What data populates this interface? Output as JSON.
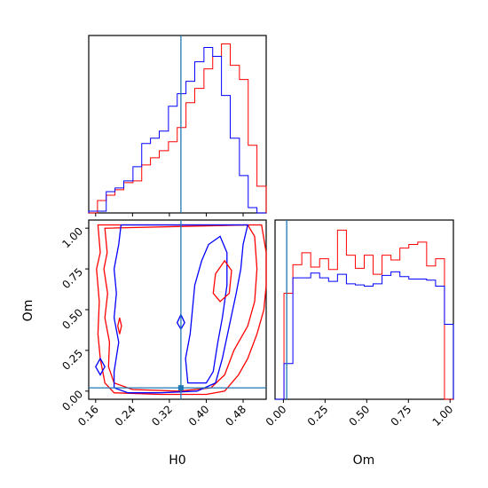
{
  "chart_data": [
    {
      "type": "histogram",
      "panel": "H0 marginal",
      "xlim": [
        0.145,
        0.53
      ],
      "truth": 0.345,
      "bin_edges": [
        0.145,
        0.164,
        0.183,
        0.202,
        0.221,
        0.241,
        0.26,
        0.279,
        0.298,
        0.318,
        0.337,
        0.356,
        0.375,
        0.395,
        0.414,
        0.433,
        0.452,
        0.472,
        0.491,
        0.51,
        0.53
      ],
      "series": [
        {
          "color": "#ff0000",
          "values": [
            0,
            7,
            10,
            13,
            17,
            18,
            27,
            31,
            35,
            40,
            48,
            62,
            70,
            81,
            88,
            95,
            83,
            75,
            38,
            15
          ]
        },
        {
          "color": "#0000ff",
          "values": [
            1,
            1,
            12,
            14,
            18,
            26,
            39,
            42,
            46,
            60,
            67,
            74,
            85,
            93,
            88,
            66,
            42,
            21,
            3,
            0
          ]
        }
      ]
    },
    {
      "type": "histogram",
      "panel": "Om marginal",
      "xlim": [
        -0.05,
        1.02
      ],
      "truth": 0.02,
      "bin_edges": [
        -0.05,
        0.0035,
        0.057,
        0.1105,
        0.164,
        0.2175,
        0.271,
        0.3245,
        0.378,
        0.4315,
        0.485,
        0.5385,
        0.592,
        0.6455,
        0.699,
        0.7525,
        0.806,
        0.8595,
        0.913,
        0.9665,
        1.02
      ],
      "series": [
        {
          "color": "#ff0000",
          "values": [
            0,
            89,
            113,
            123,
            111,
            118,
            109,
            142,
            121,
            110,
            121,
            105,
            121,
            117,
            127,
            130,
            132,
            112,
            118,
            0
          ]
        },
        {
          "color": "#0000ff",
          "values": [
            0,
            30,
            102,
            102,
            106,
            102,
            99,
            105,
            97,
            96,
            95,
            97,
            104,
            107,
            103,
            101,
            101,
            100,
            95,
            63
          ]
        }
      ]
    },
    {
      "type": "contour",
      "panel": "H0 vs Om",
      "xlim": [
        0.145,
        0.53
      ],
      "ylim": [
        -0.05,
        1.05
      ],
      "truth": [
        0.345,
        0.02
      ],
      "series": [
        {
          "color": "#ff0000",
          "levels": [
            "inner",
            "outer"
          ]
        },
        {
          "color": "#0000ff",
          "levels": [
            "inner",
            "outer"
          ]
        }
      ]
    }
  ],
  "axes": {
    "xlabel_h0": "H0",
    "xlabel_om": "Om",
    "ylabel_om": "Om",
    "h0_ticks": [
      "0.16",
      "0.24",
      "0.32",
      "0.40",
      "0.48"
    ],
    "om_ticks": [
      "0.00",
      "0.25",
      "0.50",
      "0.75",
      "1.00"
    ]
  },
  "colors": {
    "series_a": "#ff0000",
    "series_b": "#0000ff",
    "truth_line": "#1f77b4"
  }
}
